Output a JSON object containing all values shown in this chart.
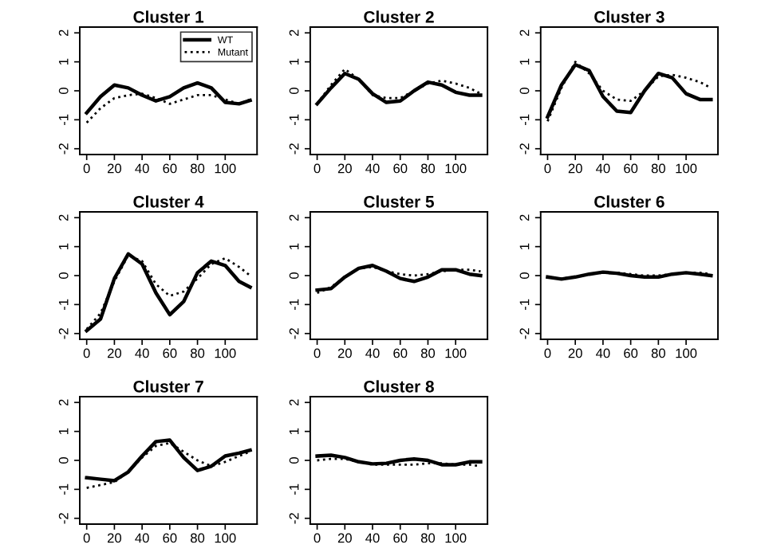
{
  "chart_data": [
    {
      "type": "line",
      "title": "Cluster 1",
      "x": [
        0,
        10,
        20,
        30,
        40,
        50,
        60,
        70,
        80,
        90,
        100,
        110,
        118
      ],
      "xlim": [
        -5,
        123
      ],
      "ylim": [
        -2.2,
        2.2
      ],
      "xticks": [
        0,
        20,
        40,
        60,
        80,
        100
      ],
      "yticks": [
        -2,
        -1,
        0,
        1,
        2
      ],
      "grid": false,
      "legend": "top right",
      "series": [
        {
          "name": "WT",
          "color": "#000000",
          "line_style": "solid",
          "values": [
            -0.76,
            -0.2,
            0.2,
            0.1,
            -0.15,
            -0.35,
            -0.2,
            0.1,
            0.27,
            0.1,
            -0.4,
            -0.45,
            -0.33
          ]
        },
        {
          "name": "Mutant",
          "color": "#000000",
          "line_style": "dotted",
          "values": [
            -1.1,
            -0.6,
            -0.25,
            -0.15,
            -0.1,
            -0.25,
            -0.45,
            -0.3,
            -0.15,
            -0.15,
            -0.3,
            -0.45,
            -0.3
          ]
        }
      ]
    },
    {
      "type": "line",
      "title": "Cluster 2",
      "x": [
        0,
        10,
        20,
        30,
        40,
        50,
        60,
        70,
        80,
        90,
        100,
        110,
        118
      ],
      "xlim": [
        -5,
        123
      ],
      "ylim": [
        -2.2,
        2.2
      ],
      "xticks": [
        0,
        20,
        40,
        60,
        80,
        100
      ],
      "yticks": [
        -2,
        -1,
        0,
        1,
        2
      ],
      "grid": false,
      "series": [
        {
          "color": "#000000",
          "line_style": "solid",
          "values": [
            -0.45,
            0.1,
            0.6,
            0.4,
            -0.1,
            -0.4,
            -0.35,
            0.0,
            0.3,
            0.2,
            -0.05,
            -0.15,
            -0.15
          ]
        },
        {
          "color": "#000000",
          "line_style": "dotted",
          "values": [
            -0.45,
            0.2,
            0.75,
            0.4,
            -0.15,
            -0.25,
            -0.25,
            0.0,
            0.25,
            0.35,
            0.25,
            0.1,
            -0.1
          ]
        }
      ]
    },
    {
      "type": "line",
      "title": "Cluster 3",
      "x": [
        0,
        10,
        20,
        30,
        40,
        50,
        60,
        70,
        80,
        90,
        100,
        110,
        118
      ],
      "xlim": [
        -5,
        123
      ],
      "ylim": [
        -2.2,
        2.2
      ],
      "xticks": [
        0,
        20,
        40,
        60,
        80,
        100
      ],
      "yticks": [
        -2,
        -1,
        0,
        1,
        2
      ],
      "grid": false,
      "series": [
        {
          "color": "#000000",
          "line_style": "solid",
          "values": [
            -0.9,
            0.2,
            0.9,
            0.7,
            -0.2,
            -0.7,
            -0.75,
            0.0,
            0.6,
            0.45,
            -0.1,
            -0.3,
            -0.3
          ]
        },
        {
          "color": "#000000",
          "line_style": "dotted",
          "values": [
            -1.05,
            0.1,
            1.0,
            0.6,
            0.0,
            -0.3,
            -0.35,
            0.0,
            0.5,
            0.55,
            0.45,
            0.3,
            0.1
          ]
        }
      ]
    },
    {
      "type": "line",
      "title": "Cluster 4",
      "x": [
        0,
        10,
        20,
        30,
        40,
        50,
        60,
        70,
        80,
        90,
        100,
        110,
        118
      ],
      "xlim": [
        -5,
        123
      ],
      "ylim": [
        -2.2,
        2.2
      ],
      "xticks": [
        0,
        20,
        40,
        60,
        80,
        100
      ],
      "yticks": [
        -2,
        -1,
        0,
        1,
        2
      ],
      "grid": false,
      "series": [
        {
          "color": "#000000",
          "line_style": "solid",
          "values": [
            -1.9,
            -1.5,
            -0.1,
            0.75,
            0.4,
            -0.6,
            -1.35,
            -0.9,
            0.1,
            0.5,
            0.35,
            -0.2,
            -0.4
          ]
        },
        {
          "color": "#000000",
          "line_style": "dotted",
          "values": [
            -1.85,
            -1.3,
            -0.2,
            0.7,
            0.5,
            -0.3,
            -0.7,
            -0.55,
            -0.1,
            0.4,
            0.6,
            0.3,
            0.0
          ]
        }
      ]
    },
    {
      "type": "line",
      "title": "Cluster 5",
      "x": [
        0,
        10,
        20,
        30,
        40,
        50,
        60,
        70,
        80,
        90,
        100,
        110,
        118
      ],
      "xlim": [
        -5,
        123
      ],
      "ylim": [
        -2.2,
        2.2
      ],
      "xticks": [
        0,
        20,
        40,
        60,
        80,
        100
      ],
      "yticks": [
        -2,
        -1,
        0,
        1,
        2
      ],
      "grid": false,
      "series": [
        {
          "color": "#000000",
          "line_style": "solid",
          "values": [
            -0.5,
            -0.45,
            -0.05,
            0.25,
            0.35,
            0.15,
            -0.1,
            -0.2,
            -0.05,
            0.2,
            0.2,
            0.05,
            0.0
          ]
        },
        {
          "color": "#000000",
          "line_style": "dotted",
          "values": [
            -0.6,
            -0.4,
            -0.05,
            0.25,
            0.3,
            0.15,
            0.05,
            0.0,
            0.05,
            0.15,
            0.2,
            0.2,
            0.15
          ]
        }
      ]
    },
    {
      "type": "line",
      "title": "Cluster 6",
      "x": [
        0,
        10,
        20,
        30,
        40,
        50,
        60,
        70,
        80,
        90,
        100,
        110,
        118
      ],
      "xlim": [
        -5,
        123
      ],
      "ylim": [
        -2.2,
        2.2
      ],
      "xticks": [
        0,
        20,
        40,
        60,
        80,
        100
      ],
      "yticks": [
        -2,
        -1,
        0,
        1,
        2
      ],
      "grid": false,
      "series": [
        {
          "color": "#000000",
          "line_style": "solid",
          "values": [
            -0.05,
            -0.12,
            -0.05,
            0.05,
            0.12,
            0.08,
            0.0,
            -0.05,
            -0.05,
            0.05,
            0.1,
            0.05,
            0.0
          ]
        },
        {
          "color": "#000000",
          "line_style": "dotted",
          "values": [
            -0.05,
            -0.1,
            -0.05,
            0.05,
            0.1,
            0.1,
            0.05,
            0.0,
            0.0,
            0.05,
            0.1,
            0.1,
            0.05
          ]
        }
      ]
    },
    {
      "type": "line",
      "title": "Cluster 7",
      "x": [
        0,
        10,
        20,
        30,
        40,
        50,
        60,
        70,
        80,
        90,
        100,
        110,
        118
      ],
      "xlim": [
        -5,
        123
      ],
      "ylim": [
        -2.2,
        2.2
      ],
      "xticks": [
        0,
        20,
        40,
        60,
        80,
        100
      ],
      "yticks": [
        -2,
        -1,
        0,
        1,
        2
      ],
      "grid": false,
      "series": [
        {
          "color": "#000000",
          "line_style": "solid",
          "values": [
            -0.6,
            -0.65,
            -0.7,
            -0.4,
            0.15,
            0.65,
            0.7,
            0.1,
            -0.35,
            -0.2,
            0.15,
            0.25,
            0.35
          ]
        },
        {
          "color": "#000000",
          "line_style": "dotted",
          "values": [
            -0.95,
            -0.85,
            -0.75,
            -0.4,
            0.1,
            0.5,
            0.6,
            0.3,
            0.0,
            -0.2,
            -0.05,
            0.15,
            0.3
          ]
        }
      ]
    },
    {
      "type": "line",
      "title": "Cluster 8",
      "x": [
        0,
        10,
        20,
        30,
        40,
        50,
        60,
        70,
        80,
        90,
        100,
        110,
        118
      ],
      "xlim": [
        -5,
        123
      ],
      "ylim": [
        -2.2,
        2.2
      ],
      "xticks": [
        0,
        20,
        40,
        60,
        80,
        100
      ],
      "yticks": [
        -2,
        -1,
        0,
        1,
        2
      ],
      "grid": false,
      "series": [
        {
          "color": "#000000",
          "line_style": "solid",
          "values": [
            0.15,
            0.18,
            0.1,
            -0.05,
            -0.12,
            -0.1,
            0.0,
            0.05,
            0.0,
            -0.15,
            -0.15,
            -0.05,
            -0.05
          ]
        },
        {
          "color": "#000000",
          "line_style": "dotted",
          "values": [
            0.0,
            0.05,
            0.05,
            -0.05,
            -0.15,
            -0.15,
            -0.15,
            -0.15,
            -0.1,
            -0.1,
            -0.15,
            -0.15,
            -0.2
          ]
        }
      ]
    }
  ]
}
